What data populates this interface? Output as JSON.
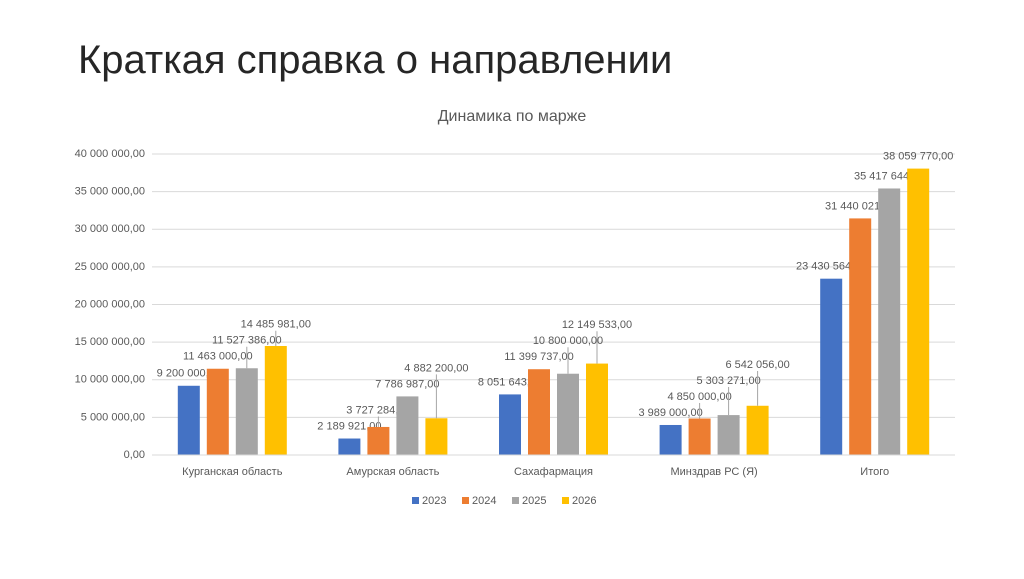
{
  "slide": {
    "title": "Краткая справка о направлении"
  },
  "chart_data": {
    "type": "bar",
    "title": "Динамика по марже",
    "categories": [
      "Курганская область",
      "Амурская область",
      "Сахафармация",
      "Минздрав РС (Я)",
      "Итого"
    ],
    "series": [
      {
        "name": "2023",
        "color": "#4472c4",
        "values": [
          9200000,
          2189921,
          8051643,
          3989000,
          23430564
        ],
        "value_labels": [
          "9 200 000,00",
          "2 189 921,00",
          "8 051 643,00",
          "3 989 000,00",
          "23 430 564,00"
        ]
      },
      {
        "name": "2024",
        "color": "#ed7d31",
        "values": [
          11463000,
          3727284,
          11399737,
          4850000,
          31440021
        ],
        "value_labels": [
          "11 463 000,00",
          "3 727 284,00",
          "11 399 737,00",
          "4 850 000,00",
          "31 440 021,00"
        ]
      },
      {
        "name": "2025",
        "color": "#a5a5a5",
        "values": [
          11527386,
          7786987,
          10800000,
          5303271,
          35417644
        ],
        "value_labels": [
          "11 527 386,00",
          "7 786 987,00",
          "10 800 000,00",
          "5 303 271,00",
          "35 417 644,00"
        ]
      },
      {
        "name": "2026",
        "color": "#ffc000",
        "values": [
          14485981,
          4882200,
          12149533,
          6542056,
          38059770
        ],
        "value_labels": [
          "14 485 981,00",
          "4 882 200,00",
          "12 149 533,00",
          "6 542 056,00",
          "38 059 770,00"
        ]
      }
    ],
    "ylim": [
      0,
      40000000
    ],
    "yticks": [
      {
        "value": 0,
        "label": "0,00"
      },
      {
        "value": 5000000,
        "label": "5 000 000,00"
      },
      {
        "value": 10000000,
        "label": "10 000 000,00"
      },
      {
        "value": 15000000,
        "label": "15 000 000,00"
      },
      {
        "value": 20000000,
        "label": "20 000 000,00"
      },
      {
        "value": 25000000,
        "label": "25 000 000,00"
      },
      {
        "value": 30000000,
        "label": "30 000 000,00"
      },
      {
        "value": 35000000,
        "label": "35 000 000,00"
      },
      {
        "value": 40000000,
        "label": "40 000 000,00"
      }
    ],
    "grid": true,
    "legend": "bottom"
  }
}
